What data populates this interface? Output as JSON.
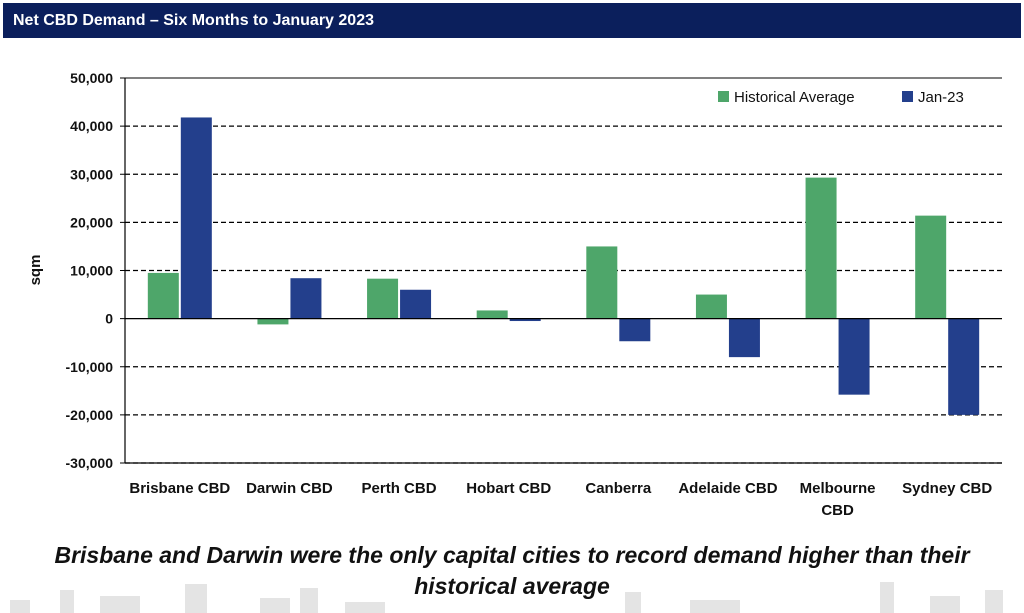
{
  "header": {
    "title": "Net CBD Demand – Six Months to January 2023"
  },
  "caption": "Brisbane and Darwin were the only capital cities to record demand higher than their historical average",
  "colors": {
    "historical": "#4ea66a",
    "jan23": "#233f8c",
    "header": "#0b1f5c"
  },
  "chart_data": {
    "type": "bar",
    "title": "",
    "xlabel": "",
    "ylabel": "sqm",
    "ylim": [
      -30000,
      50000
    ],
    "yticks": [
      50000,
      40000,
      30000,
      20000,
      10000,
      0,
      -10000,
      -20000,
      -30000
    ],
    "ytick_labels": [
      "50,000",
      "40,000",
      "30,000",
      "20,000",
      "10,000",
      "0",
      "-10,000",
      "-20,000",
      "-30,000"
    ],
    "grid": "horizontal-dashed",
    "legend_position": "top-right",
    "categories": [
      "Brisbane CBD",
      "Darwin CBD",
      "Perth CBD",
      "Hobart CBD",
      "Canberra",
      "Adelaide CBD",
      "Melbourne CBD",
      "Sydney CBD"
    ],
    "category_lines": [
      [
        "Brisbane CBD"
      ],
      [
        "Darwin CBD"
      ],
      [
        "Perth CBD"
      ],
      [
        "Hobart CBD"
      ],
      [
        "Canberra"
      ],
      [
        "Adelaide CBD"
      ],
      [
        "Melbourne",
        "CBD"
      ],
      [
        "Sydney CBD"
      ]
    ],
    "series": [
      {
        "name": "Historical Average",
        "values": [
          9500,
          -1200,
          8300,
          1700,
          15000,
          5000,
          29300,
          21400
        ]
      },
      {
        "name": "Jan-23",
        "values": [
          41800,
          8400,
          6000,
          -500,
          -4700,
          -8000,
          -15800,
          -20000
        ]
      }
    ]
  }
}
